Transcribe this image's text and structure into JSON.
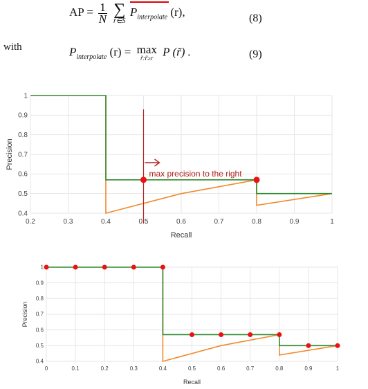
{
  "equations": {
    "eq8": {
      "lhs": "AP",
      "num": "1",
      "den": "N",
      "sum_sub": "r∈S",
      "term": "P",
      "term_sub": "interpolate",
      "arg": "(r),",
      "number": "(8)"
    },
    "with_word": "with",
    "eq9": {
      "lhs": "P",
      "lhs_sub": "interpolate",
      "lhs_arg": "(r)",
      "op": "max",
      "op_sub": "r̃:r̃≥r",
      "rhs": "P (r̃) .",
      "number": "(9)"
    }
  },
  "accent_color": "#e00000",
  "chart_data": [
    {
      "type": "line",
      "xlabel": "Recall",
      "ylabel": "Precision",
      "xlim": [
        0.2,
        1.0
      ],
      "ylim": [
        0.4,
        1.0
      ],
      "xticks": [
        "0.2",
        "0.3",
        "0.4",
        "0.5",
        "0.6",
        "0.7",
        "0.8",
        "0.9",
        "1"
      ],
      "yticks": [
        "0.4",
        "0.5",
        "0.6",
        "0.7",
        "0.8",
        "0.9",
        "1"
      ],
      "series": [
        {
          "color": "#2e8b2e",
          "x": [
            0.2,
            0.4,
            0.4,
            0.8,
            0.8,
            1.0
          ],
          "y": [
            1.0,
            1.0,
            0.57,
            0.57,
            0.5,
            0.5
          ]
        },
        {
          "color": "#f08a2c",
          "x": [
            0.4,
            0.4,
            0.6,
            0.8,
            0.8,
            1.0
          ],
          "y": [
            1.0,
            0.4,
            0.5,
            0.57,
            0.44,
            0.5
          ]
        }
      ],
      "points": [
        {
          "x": 0.5,
          "y": 0.57
        },
        {
          "x": 0.8,
          "y": 0.57
        }
      ],
      "annotation": {
        "text": "max precision to the right",
        "x": 0.5,
        "color": "#b22222"
      }
    },
    {
      "type": "line",
      "xlabel": "Recall",
      "ylabel": "Precision",
      "xlim": [
        0,
        1.0
      ],
      "ylim": [
        0.4,
        1.0
      ],
      "xticks": [
        "0",
        "0.1",
        "0.2",
        "0.3",
        "0.4",
        "0.5",
        "0.6",
        "0.7",
        "0.8",
        "0.9",
        "1"
      ],
      "yticks": [
        "0.4",
        "0.5",
        "0.6",
        "0.7",
        "0.8",
        "0.9",
        "1"
      ],
      "series": [
        {
          "color": "#2e8b2e",
          "x": [
            0,
            0.4,
            0.4,
            0.8,
            0.8,
            1.0
          ],
          "y": [
            1.0,
            1.0,
            0.57,
            0.57,
            0.5,
            0.5
          ]
        },
        {
          "color": "#f08a2c",
          "x": [
            0.4,
            0.4,
            0.6,
            0.8,
            0.8,
            1.0
          ],
          "y": [
            1.0,
            0.4,
            0.5,
            0.57,
            0.44,
            0.5
          ]
        }
      ],
      "points": [
        {
          "x": 0,
          "y": 1.0
        },
        {
          "x": 0.1,
          "y": 1.0
        },
        {
          "x": 0.2,
          "y": 1.0
        },
        {
          "x": 0.3,
          "y": 1.0
        },
        {
          "x": 0.4,
          "y": 1.0
        },
        {
          "x": 0.5,
          "y": 0.57
        },
        {
          "x": 0.6,
          "y": 0.57
        },
        {
          "x": 0.7,
          "y": 0.57
        },
        {
          "x": 0.8,
          "y": 0.57
        },
        {
          "x": 0.9,
          "y": 0.5
        },
        {
          "x": 1.0,
          "y": 0.5
        }
      ]
    }
  ]
}
